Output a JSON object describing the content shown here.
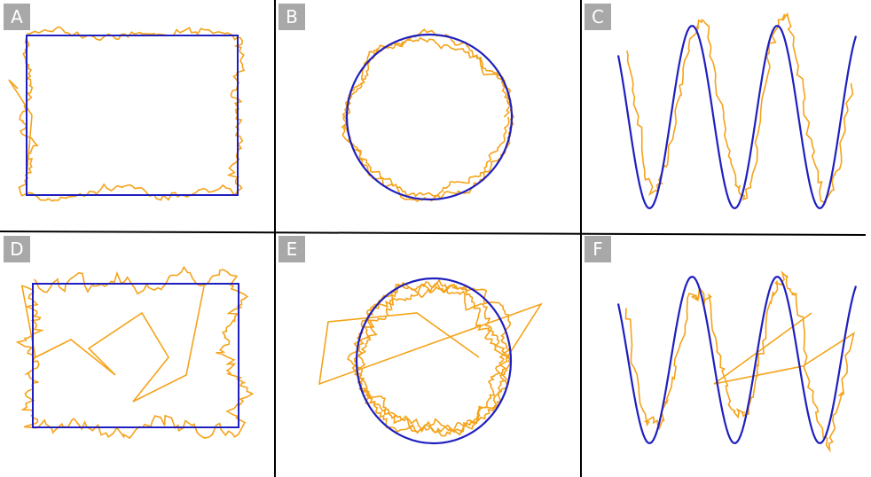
{
  "panels": [
    {
      "id": "A",
      "label": "A",
      "shape": "rectangle"
    },
    {
      "id": "B",
      "label": "B",
      "shape": "circle"
    },
    {
      "id": "C",
      "label": "C",
      "shape": "sine-wave"
    },
    {
      "id": "D",
      "label": "D",
      "shape": "rectangle"
    },
    {
      "id": "E",
      "label": "E",
      "shape": "circle"
    },
    {
      "id": "F",
      "label": "F",
      "shape": "sine-wave"
    }
  ],
  "colors": {
    "target": "#1f1fbf",
    "trace": "#f5a31a",
    "divider": "#000000",
    "label_bg": "#a8a8a8",
    "label_text": "#ffffff"
  }
}
